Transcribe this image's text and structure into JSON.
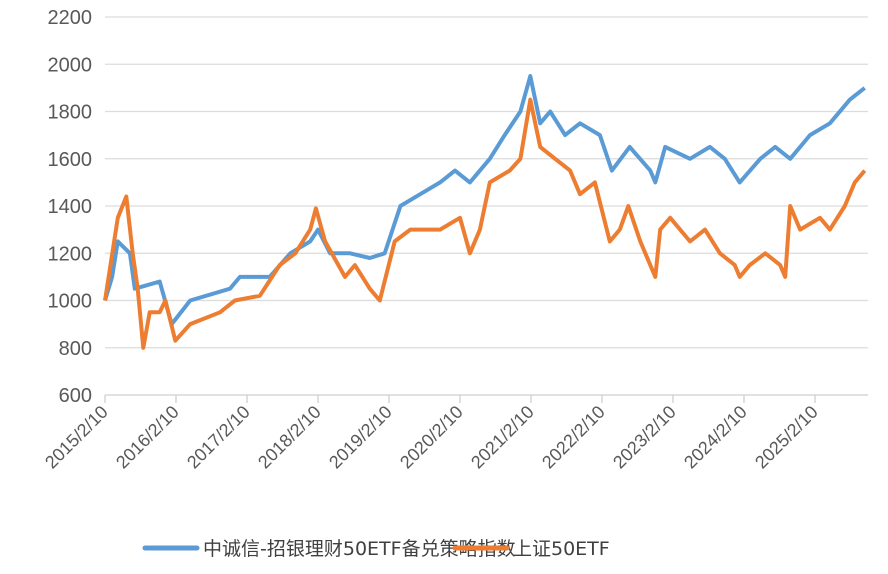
{
  "chart_data": {
    "type": "line",
    "title": "",
    "xlabel": "",
    "ylabel": "",
    "ylim": [
      600,
      2200
    ],
    "yticks": [
      600,
      800,
      1000,
      1200,
      1400,
      1600,
      1800,
      2000,
      2200
    ],
    "xlim": [
      2015.11,
      2025.85
    ],
    "xtick_labels": [
      "2015/2/10",
      "2016/2/10",
      "2017/2/10",
      "2018/2/10",
      "2019/2/10",
      "2020/2/10",
      "2021/2/10",
      "2022/2/10",
      "2023/2/10",
      "2024/2/10",
      "2025/2/10"
    ],
    "grid": "horizontal",
    "legend_position": "bottom",
    "series": [
      {
        "name": "中诚信-招银理财50ETF备兑策略指数",
        "color": "#5b9bd5",
        "points": [
          [
            2015.11,
            1000
          ],
          [
            2015.21,
            1100
          ],
          [
            2015.29,
            1250
          ],
          [
            2015.46,
            1200
          ],
          [
            2015.53,
            1050
          ],
          [
            2015.88,
            1080
          ],
          [
            2016.05,
            900
          ],
          [
            2016.31,
            1000
          ],
          [
            2016.87,
            1050
          ],
          [
            2017.01,
            1100
          ],
          [
            2017.43,
            1100
          ],
          [
            2017.72,
            1200
          ],
          [
            2018.0,
            1250
          ],
          [
            2018.11,
            1300
          ],
          [
            2018.28,
            1200
          ],
          [
            2018.56,
            1200
          ],
          [
            2018.84,
            1180
          ],
          [
            2019.05,
            1200
          ],
          [
            2019.27,
            1400
          ],
          [
            2019.55,
            1450
          ],
          [
            2019.83,
            1500
          ],
          [
            2020.04,
            1550
          ],
          [
            2020.25,
            1500
          ],
          [
            2020.53,
            1600
          ],
          [
            2020.74,
            1700
          ],
          [
            2020.96,
            1800
          ],
          [
            2021.1,
            1950
          ],
          [
            2021.24,
            1750
          ],
          [
            2021.38,
            1800
          ],
          [
            2021.59,
            1700
          ],
          [
            2021.8,
            1750
          ],
          [
            2022.08,
            1700
          ],
          [
            2022.25,
            1550
          ],
          [
            2022.5,
            1650
          ],
          [
            2022.79,
            1550
          ],
          [
            2022.86,
            1500
          ],
          [
            2023.0,
            1650
          ],
          [
            2023.35,
            1600
          ],
          [
            2023.63,
            1650
          ],
          [
            2023.84,
            1600
          ],
          [
            2024.05,
            1500
          ],
          [
            2024.34,
            1600
          ],
          [
            2024.55,
            1650
          ],
          [
            2024.76,
            1600
          ],
          [
            2025.04,
            1700
          ],
          [
            2025.32,
            1750
          ],
          [
            2025.6,
            1850
          ],
          [
            2025.81,
            1900
          ]
        ]
      },
      {
        "name": "上证50ETF",
        "color": "#ed7d31",
        "points": [
          [
            2015.11,
            1000
          ],
          [
            2015.29,
            1350
          ],
          [
            2015.41,
            1440
          ],
          [
            2015.5,
            1200
          ],
          [
            2015.57,
            1050
          ],
          [
            2015.65,
            800
          ],
          [
            2015.74,
            950
          ],
          [
            2015.88,
            950
          ],
          [
            2015.96,
            1000
          ],
          [
            2016.1,
            830
          ],
          [
            2016.31,
            900
          ],
          [
            2016.73,
            950
          ],
          [
            2016.94,
            1000
          ],
          [
            2017.29,
            1020
          ],
          [
            2017.57,
            1150
          ],
          [
            2017.79,
            1200
          ],
          [
            2018.0,
            1300
          ],
          [
            2018.08,
            1390
          ],
          [
            2018.21,
            1250
          ],
          [
            2018.49,
            1100
          ],
          [
            2018.63,
            1150
          ],
          [
            2018.84,
            1050
          ],
          [
            2018.98,
            1000
          ],
          [
            2019.19,
            1250
          ],
          [
            2019.41,
            1300
          ],
          [
            2019.83,
            1300
          ],
          [
            2020.11,
            1350
          ],
          [
            2020.25,
            1200
          ],
          [
            2020.39,
            1300
          ],
          [
            2020.53,
            1500
          ],
          [
            2020.81,
            1550
          ],
          [
            2020.96,
            1600
          ],
          [
            2021.1,
            1850
          ],
          [
            2021.24,
            1650
          ],
          [
            2021.45,
            1600
          ],
          [
            2021.66,
            1550
          ],
          [
            2021.8,
            1450
          ],
          [
            2022.01,
            1500
          ],
          [
            2022.22,
            1250
          ],
          [
            2022.36,
            1300
          ],
          [
            2022.48,
            1400
          ],
          [
            2022.65,
            1250
          ],
          [
            2022.79,
            1150
          ],
          [
            2022.86,
            1100
          ],
          [
            2022.93,
            1300
          ],
          [
            2023.07,
            1350
          ],
          [
            2023.35,
            1250
          ],
          [
            2023.56,
            1300
          ],
          [
            2023.77,
            1200
          ],
          [
            2023.98,
            1150
          ],
          [
            2024.05,
            1100
          ],
          [
            2024.19,
            1150
          ],
          [
            2024.41,
            1200
          ],
          [
            2024.62,
            1150
          ],
          [
            2024.69,
            1100
          ],
          [
            2024.76,
            1400
          ],
          [
            2024.9,
            1300
          ],
          [
            2025.18,
            1350
          ],
          [
            2025.32,
            1300
          ],
          [
            2025.53,
            1400
          ],
          [
            2025.67,
            1500
          ],
          [
            2025.81,
            1550
          ]
        ]
      }
    ]
  }
}
